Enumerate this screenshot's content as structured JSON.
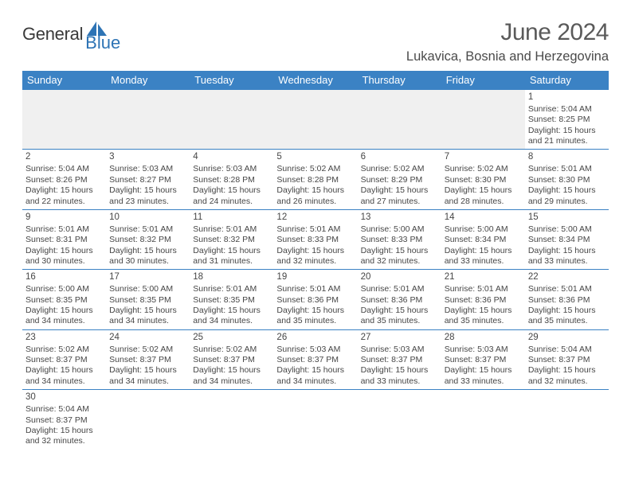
{
  "logo": {
    "general": "General",
    "blue": "Blue"
  },
  "header": {
    "title": "June 2024",
    "location": "Lukavica, Bosnia and Herzegovina"
  },
  "colors": {
    "header_bg": "#3b82c4",
    "header_text": "#ffffff",
    "logo_blue": "#2e74b5",
    "cell_border": "#3b82c4",
    "empty_bg": "#f0f0f0",
    "text": "#464646"
  },
  "weekdays": [
    "Sunday",
    "Monday",
    "Tuesday",
    "Wednesday",
    "Thursday",
    "Friday",
    "Saturday"
  ],
  "grid": [
    [
      null,
      null,
      null,
      null,
      null,
      null,
      {
        "n": "1",
        "sr": "5:04 AM",
        "ss": "8:25 PM",
        "dl": "15 hours and 21 minutes."
      }
    ],
    [
      {
        "n": "2",
        "sr": "5:04 AM",
        "ss": "8:26 PM",
        "dl": "15 hours and 22 minutes."
      },
      {
        "n": "3",
        "sr": "5:03 AM",
        "ss": "8:27 PM",
        "dl": "15 hours and 23 minutes."
      },
      {
        "n": "4",
        "sr": "5:03 AM",
        "ss": "8:28 PM",
        "dl": "15 hours and 24 minutes."
      },
      {
        "n": "5",
        "sr": "5:02 AM",
        "ss": "8:28 PM",
        "dl": "15 hours and 26 minutes."
      },
      {
        "n": "6",
        "sr": "5:02 AM",
        "ss": "8:29 PM",
        "dl": "15 hours and 27 minutes."
      },
      {
        "n": "7",
        "sr": "5:02 AM",
        "ss": "8:30 PM",
        "dl": "15 hours and 28 minutes."
      },
      {
        "n": "8",
        "sr": "5:01 AM",
        "ss": "8:30 PM",
        "dl": "15 hours and 29 minutes."
      }
    ],
    [
      {
        "n": "9",
        "sr": "5:01 AM",
        "ss": "8:31 PM",
        "dl": "15 hours and 30 minutes."
      },
      {
        "n": "10",
        "sr": "5:01 AM",
        "ss": "8:32 PM",
        "dl": "15 hours and 30 minutes."
      },
      {
        "n": "11",
        "sr": "5:01 AM",
        "ss": "8:32 PM",
        "dl": "15 hours and 31 minutes."
      },
      {
        "n": "12",
        "sr": "5:01 AM",
        "ss": "8:33 PM",
        "dl": "15 hours and 32 minutes."
      },
      {
        "n": "13",
        "sr": "5:00 AM",
        "ss": "8:33 PM",
        "dl": "15 hours and 32 minutes."
      },
      {
        "n": "14",
        "sr": "5:00 AM",
        "ss": "8:34 PM",
        "dl": "15 hours and 33 minutes."
      },
      {
        "n": "15",
        "sr": "5:00 AM",
        "ss": "8:34 PM",
        "dl": "15 hours and 33 minutes."
      }
    ],
    [
      {
        "n": "16",
        "sr": "5:00 AM",
        "ss": "8:35 PM",
        "dl": "15 hours and 34 minutes."
      },
      {
        "n": "17",
        "sr": "5:00 AM",
        "ss": "8:35 PM",
        "dl": "15 hours and 34 minutes."
      },
      {
        "n": "18",
        "sr": "5:01 AM",
        "ss": "8:35 PM",
        "dl": "15 hours and 34 minutes."
      },
      {
        "n": "19",
        "sr": "5:01 AM",
        "ss": "8:36 PM",
        "dl": "15 hours and 35 minutes."
      },
      {
        "n": "20",
        "sr": "5:01 AM",
        "ss": "8:36 PM",
        "dl": "15 hours and 35 minutes."
      },
      {
        "n": "21",
        "sr": "5:01 AM",
        "ss": "8:36 PM",
        "dl": "15 hours and 35 minutes."
      },
      {
        "n": "22",
        "sr": "5:01 AM",
        "ss": "8:36 PM",
        "dl": "15 hours and 35 minutes."
      }
    ],
    [
      {
        "n": "23",
        "sr": "5:02 AM",
        "ss": "8:37 PM",
        "dl": "15 hours and 34 minutes."
      },
      {
        "n": "24",
        "sr": "5:02 AM",
        "ss": "8:37 PM",
        "dl": "15 hours and 34 minutes."
      },
      {
        "n": "25",
        "sr": "5:02 AM",
        "ss": "8:37 PM",
        "dl": "15 hours and 34 minutes."
      },
      {
        "n": "26",
        "sr": "5:03 AM",
        "ss": "8:37 PM",
        "dl": "15 hours and 34 minutes."
      },
      {
        "n": "27",
        "sr": "5:03 AM",
        "ss": "8:37 PM",
        "dl": "15 hours and 33 minutes."
      },
      {
        "n": "28",
        "sr": "5:03 AM",
        "ss": "8:37 PM",
        "dl": "15 hours and 33 minutes."
      },
      {
        "n": "29",
        "sr": "5:04 AM",
        "ss": "8:37 PM",
        "dl": "15 hours and 32 minutes."
      }
    ],
    [
      {
        "n": "30",
        "sr": "5:04 AM",
        "ss": "8:37 PM",
        "dl": "15 hours and 32 minutes."
      },
      null,
      null,
      null,
      null,
      null,
      null
    ]
  ],
  "labels": {
    "sunrise": "Sunrise: ",
    "sunset": "Sunset: ",
    "daylight": "Daylight: "
  }
}
